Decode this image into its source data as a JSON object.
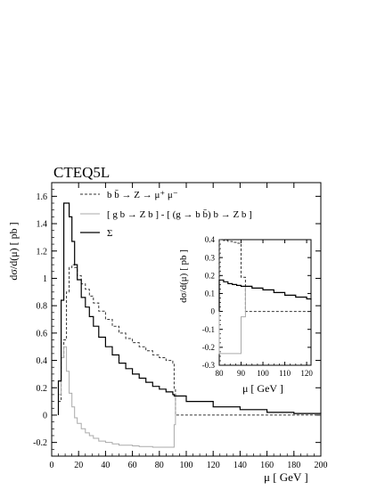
{
  "chart_data": [
    {
      "type": "line",
      "title": "CTEQ5L",
      "xlabel": "μ [ GeV ]",
      "ylabel": "dσ/d(μ) [ pb ]",
      "xlim": [
        0,
        200
      ],
      "ylim": [
        -0.3,
        1.7
      ],
      "xticks": [
        "0",
        "20",
        "40",
        "60",
        "80",
        "100",
        "120",
        "140",
        "160",
        "180",
        "200"
      ],
      "yticks": [
        "-0.2",
        "0",
        "0.2",
        "0.4",
        "0.6",
        "0.8",
        "1",
        "1.2",
        "1.4",
        "1.6"
      ],
      "legend_position": "top-right",
      "series": [
        {
          "name": "b b̄ → Z → μ⁺ μ⁻",
          "style": "dashed",
          "color": "#333333",
          "x": [
            5,
            7,
            9,
            11,
            13,
            15,
            17,
            19,
            22,
            25,
            28,
            31,
            35,
            40,
            45,
            50,
            55,
            60,
            65,
            70,
            75,
            80,
            85,
            90,
            91,
            92,
            100,
            120,
            140,
            160,
            180,
            200
          ],
          "y": [
            0.1,
            0.42,
            0.55,
            0.9,
            1.08,
            1.1,
            1.08,
            1.02,
            0.96,
            0.92,
            0.87,
            0.82,
            0.76,
            0.7,
            0.65,
            0.6,
            0.56,
            0.53,
            0.5,
            0.47,
            0.44,
            0.42,
            0.4,
            0.38,
            0.19,
            0.0,
            0.0,
            0.0,
            0.0,
            0.0,
            0.0,
            0.0
          ]
        },
        {
          "name": "[ g b → Z b ] - [ (g → b b̄) b → Z b ]",
          "style": "solid",
          "color": "#aaaaaa",
          "x": [
            5,
            7,
            9,
            11,
            13,
            15,
            17,
            19,
            22,
            25,
            28,
            31,
            35,
            40,
            45,
            50,
            55,
            60,
            65,
            70,
            75,
            80,
            85,
            90,
            91,
            92,
            100,
            120,
            140,
            160,
            180,
            200
          ],
          "y": [
            0.15,
            0.42,
            0.5,
            0.32,
            0.16,
            0.06,
            -0.02,
            -0.06,
            -0.1,
            -0.13,
            -0.15,
            -0.17,
            -0.19,
            -0.2,
            -0.21,
            -0.22,
            -0.22,
            -0.225,
            -0.23,
            -0.23,
            -0.235,
            -0.235,
            -0.235,
            -0.235,
            -0.07,
            0.14,
            0.1,
            0.06,
            0.04,
            0.02,
            0.012,
            0.008
          ]
        },
        {
          "name": "Σ",
          "style": "solid",
          "color": "#000000",
          "x": [
            5,
            7,
            9,
            11,
            13,
            15,
            17,
            19,
            22,
            25,
            28,
            31,
            35,
            40,
            45,
            50,
            55,
            60,
            65,
            70,
            75,
            80,
            85,
            90,
            91,
            92,
            100,
            120,
            140,
            160,
            180,
            200
          ],
          "y": [
            0.25,
            0.84,
            1.55,
            1.55,
            1.45,
            1.27,
            1.1,
            0.99,
            0.86,
            0.79,
            0.72,
            0.65,
            0.57,
            0.5,
            0.44,
            0.38,
            0.34,
            0.3,
            0.27,
            0.24,
            0.21,
            0.19,
            0.17,
            0.15,
            0.14,
            0.14,
            0.1,
            0.06,
            0.04,
            0.02,
            0.012,
            0.008
          ]
        }
      ]
    },
    {
      "type": "line",
      "title": "",
      "xlabel": "μ [ GeV ]",
      "ylabel": "dσ/d(μ) [ pb ]",
      "xlim": [
        80,
        122
      ],
      "ylim": [
        -0.3,
        0.4
      ],
      "xticks": [
        "80",
        "90",
        "100",
        "110",
        "120"
      ],
      "yticks": [
        "-0.3",
        "-0.2",
        "-0.1",
        "0",
        "0.1",
        "0.2",
        "0.3",
        "0.4"
      ],
      "series": [
        {
          "style": "dashed",
          "color": "#333333",
          "x": [
            80,
            82,
            84,
            86,
            88,
            90,
            92,
            95,
            100,
            105,
            110,
            115,
            120,
            122
          ],
          "y": [
            0.4,
            0.395,
            0.39,
            0.385,
            0.38,
            0.19,
            0.0,
            0.0,
            0.0,
            0.0,
            0.0,
            0.0,
            0.0,
            0.0
          ]
        },
        {
          "style": "solid",
          "color": "#aaaaaa",
          "x": [
            80,
            82,
            84,
            86,
            88,
            90,
            92,
            95,
            100,
            105,
            110,
            115,
            120,
            122
          ],
          "y": [
            -0.235,
            -0.235,
            -0.235,
            -0.235,
            -0.235,
            -0.03,
            0.14,
            0.13,
            0.12,
            0.105,
            0.09,
            0.08,
            0.07,
            0.065
          ]
        },
        {
          "style": "solid",
          "color": "#000000",
          "x": [
            80,
            82,
            84,
            86,
            88,
            90,
            92,
            95,
            100,
            105,
            110,
            115,
            120,
            122
          ],
          "y": [
            0.175,
            0.165,
            0.155,
            0.15,
            0.145,
            0.14,
            0.14,
            0.13,
            0.12,
            0.105,
            0.09,
            0.08,
            0.07,
            0.065
          ]
        }
      ]
    }
  ]
}
